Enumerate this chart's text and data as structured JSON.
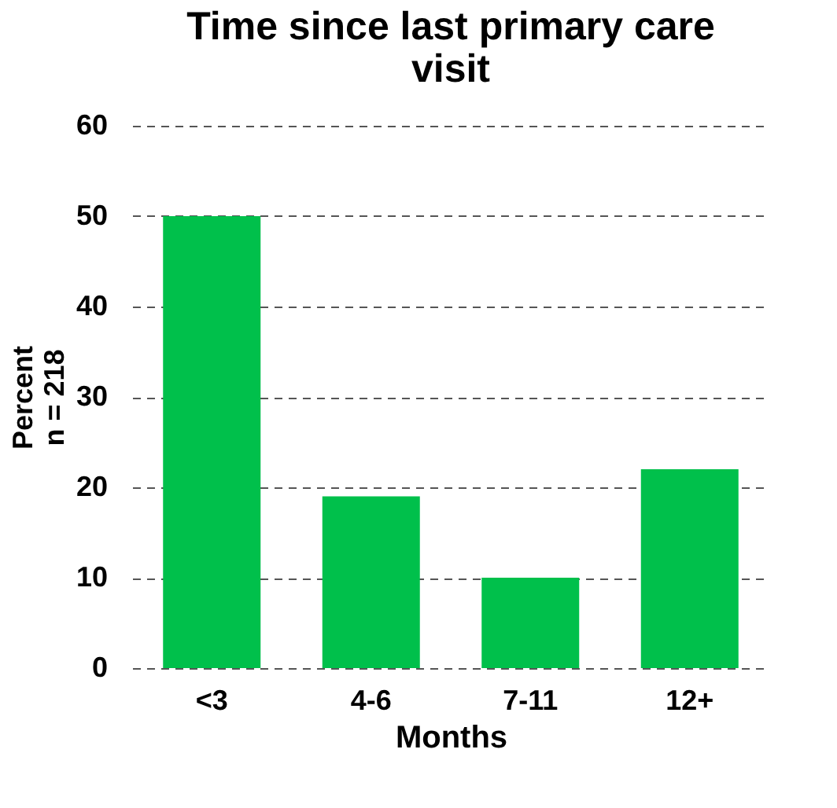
{
  "chart_data": {
    "type": "bar",
    "title": "Time since last primary care visit",
    "xlabel": "Months",
    "ylabel": "Percent\nn = 218",
    "categories": [
      "<3",
      "4-6",
      "7-11",
      "12+"
    ],
    "values": [
      50,
      19,
      10,
      22
    ],
    "color": "#00c04b",
    "ylim": [
      0,
      60
    ],
    "yticks": [
      0,
      10,
      20,
      30,
      40,
      50,
      60
    ],
    "grid": "y"
  }
}
